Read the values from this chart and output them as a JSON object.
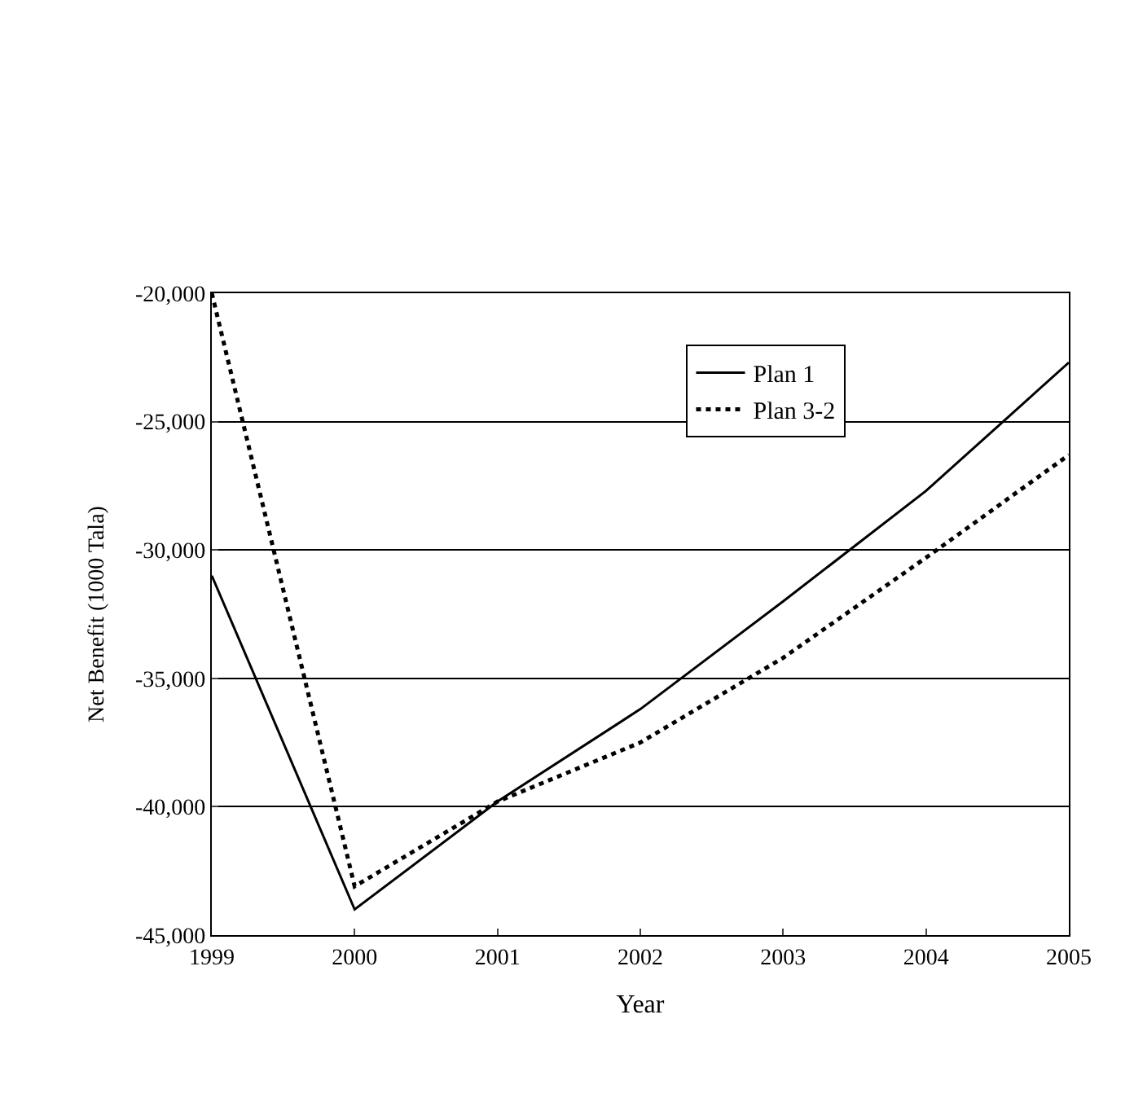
{
  "chart_data": {
    "type": "line",
    "xlabel": "Year",
    "ylabel": "Net Benefit (1000 Tala)",
    "x": [
      1999,
      2000,
      2001,
      2002,
      2003,
      2004,
      2005
    ],
    "series": [
      {
        "name": "Plan 1",
        "color": "#000000",
        "line_style": "solid",
        "values": [
          -31000,
          -44000,
          -39800,
          -36200,
          -32000,
          -27700,
          -22700
        ]
      },
      {
        "name": "Plan 3-2",
        "color": "#000000",
        "line_style": "dotted",
        "values": [
          -20000,
          -43100,
          -39800,
          -37500,
          -34200,
          -30300,
          -26300
        ]
      }
    ],
    "xlim": [
      1999,
      2005
    ],
    "xticks": [
      1999,
      2000,
      2001,
      2002,
      2003,
      2004,
      2005
    ],
    "ylim": [
      -45000,
      -20000
    ],
    "yticks": [
      {
        "value": -45000,
        "label": "-45,000"
      },
      {
        "value": -40000,
        "label": "-40,000"
      },
      {
        "value": -35000,
        "label": "-35,000"
      },
      {
        "value": -30000,
        "label": "-30,000"
      },
      {
        "value": -25000,
        "label": "-25,000"
      },
      {
        "value": -20000,
        "label": "-20,000"
      }
    ],
    "grid": "y",
    "legend": "top right",
    "marker": "none"
  }
}
